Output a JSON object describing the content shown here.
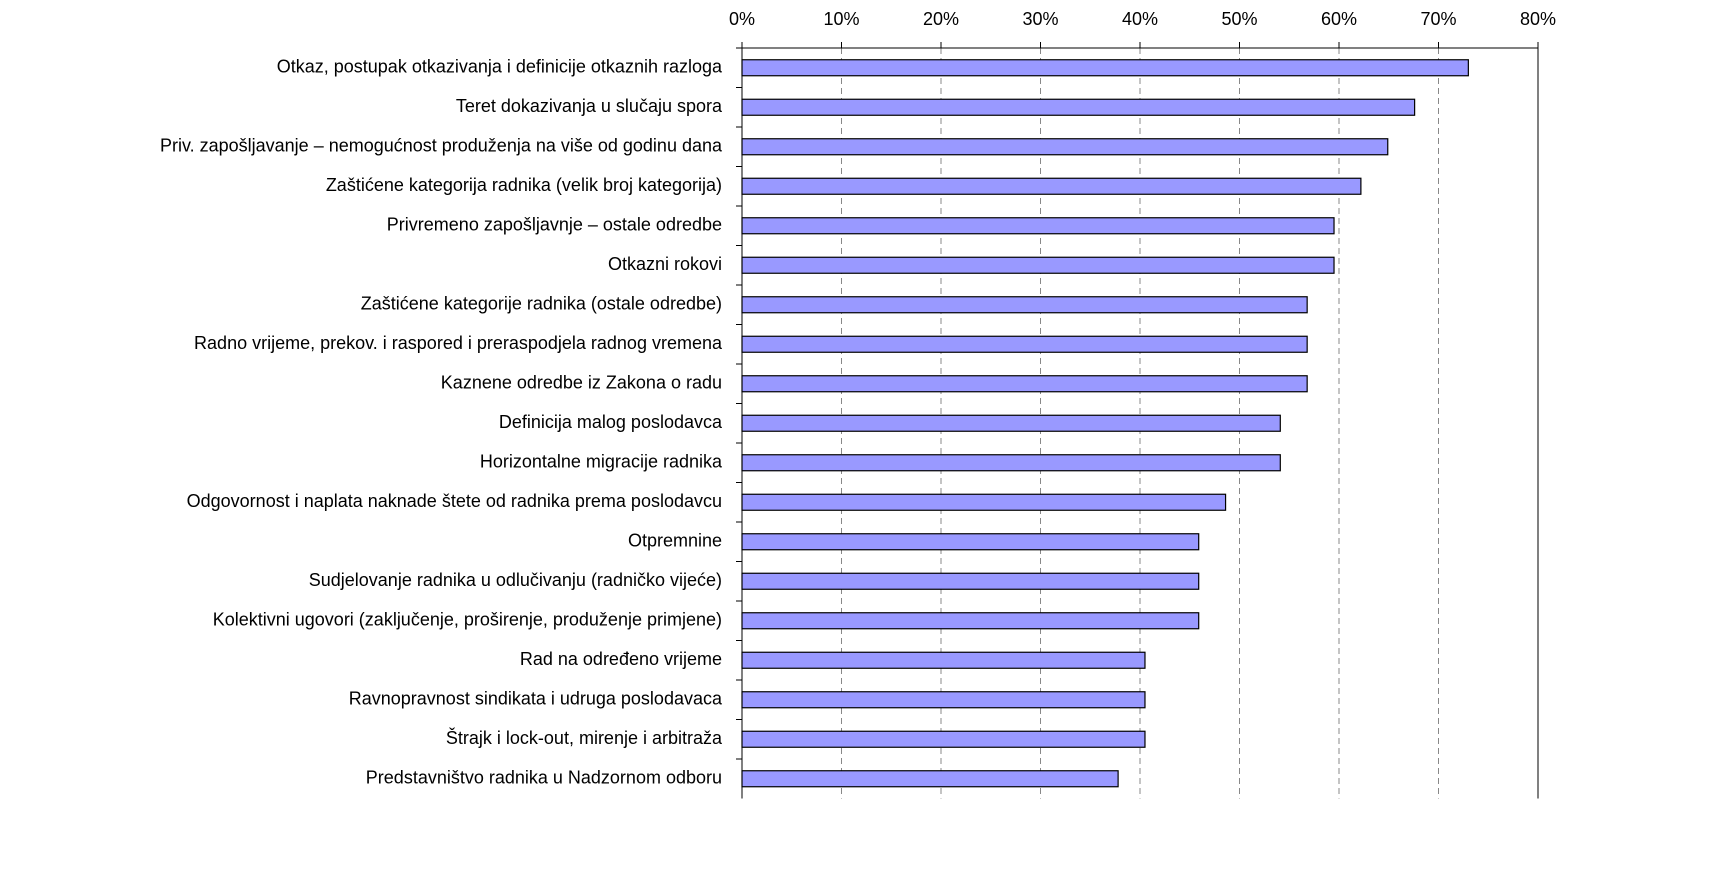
{
  "chart_data": {
    "type": "barh",
    "categories": [
      "Otkaz, postupak otkazivanja i definicije otkaznih razloga",
      "Teret dokazivanja u slučaju spora",
      "Priv. zapošljavanje – nemogućnost produženja na više od godinu dana",
      "Zaštićene kategorija radnika (velik broj kategorija)",
      "Privremeno zapošljavnje – ostale odredbe",
      "Otkazni rokovi",
      "Zaštićene kategorije radnika (ostale odredbe)",
      "Radno vrijeme, prekov. i raspored i preraspodjela radnog vremena",
      "Kaznene odredbe iz Zakona o radu",
      "Definicija malog poslodavca",
      "Horizontalne migracije radnika",
      "Odgovornost i naplata naknade štete od radnika prema poslodavcu",
      "Otpremnine",
      "Sudjelovanje radnika u odlučivanju (radničko vijeće)",
      "Kolektivni ugovori (zaključenje, proširenje, produženje primjene)",
      "Rad na određeno vrijeme",
      "Ravnopravnost sindikata i udruga poslodavaca",
      "Štrajk i lock-out, mirenje i arbitraža",
      "Predstavništvo radnika u Nadzornom odboru"
    ],
    "values": [
      73.0,
      67.6,
      64.9,
      62.2,
      59.5,
      59.5,
      56.8,
      56.8,
      56.8,
      54.1,
      54.1,
      48.6,
      45.9,
      45.9,
      45.9,
      40.5,
      40.5,
      40.5,
      37.8
    ],
    "color": "#9999ff",
    "xlim": [
      0,
      80
    ],
    "xticks": [
      {
        "value": 0,
        "label": "0%"
      },
      {
        "value": 10,
        "label": "10%"
      },
      {
        "value": 20,
        "label": "20%"
      },
      {
        "value": 30,
        "label": "30%"
      },
      {
        "value": 40,
        "label": "40%"
      },
      {
        "value": 50,
        "label": "50%"
      },
      {
        "value": 60,
        "label": "60%"
      },
      {
        "value": 70,
        "label": "70%"
      },
      {
        "value": 80,
        "label": "80%"
      }
    ],
    "grid": true
  }
}
